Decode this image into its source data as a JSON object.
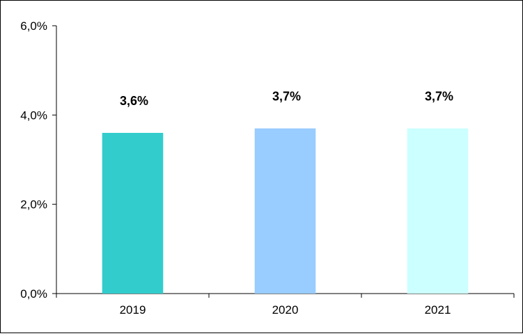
{
  "chart_data": {
    "type": "bar",
    "categories": [
      "2019",
      "2020",
      "2021"
    ],
    "values": [
      3.6,
      3.7,
      3.7
    ],
    "data_labels": [
      "3,6%",
      "3,7%",
      "3,7%"
    ],
    "bar_colors": [
      "#33CCCC",
      "#99CCFF",
      "#CCFFFF"
    ],
    "ylim": [
      0,
      6
    ],
    "yticks": [
      {
        "value": 0,
        "label": "0,0%"
      },
      {
        "value": 2,
        "label": "2,0%"
      },
      {
        "value": 4,
        "label": "4,0%"
      },
      {
        "value": 6,
        "label": "6,0%"
      }
    ],
    "grid": false,
    "legend": "none"
  }
}
